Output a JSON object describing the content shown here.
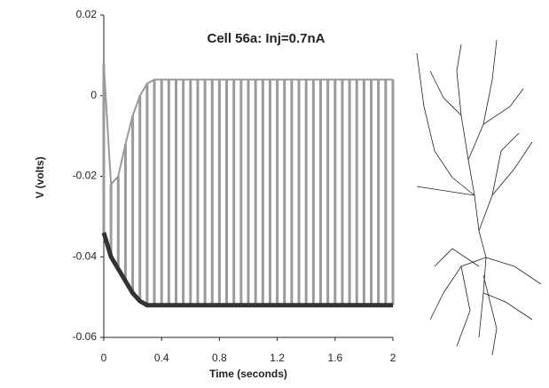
{
  "chart_data": {
    "type": "line",
    "title": "Cell 56a: Inj=0.7nA",
    "x_label": "Time (seconds)",
    "y_label": "V (volts)",
    "x": [
      0,
      0.05,
      0.1,
      0.15,
      0.2,
      0.25,
      0.3,
      0.35,
      0.4,
      0.45,
      0.5,
      0.55,
      0.6,
      0.65,
      0.7,
      0.75,
      0.8,
      0.85,
      0.9,
      0.95,
      1,
      1.05,
      1.1,
      1.15,
      1.2,
      1.25,
      1.3,
      1.35,
      1.4,
      1.45,
      1.5,
      1.55,
      1.6,
      1.65,
      1.7,
      1.75,
      1.8,
      1.85,
      1.9,
      1.95,
      2
    ],
    "series": [
      {
        "color": "#9a9a9a",
        "values": [
          0.008,
          -0.022,
          -0.02,
          -0.012,
          -0.005,
          0,
          0.003,
          0.004,
          0.004,
          0.004,
          0.004,
          0.004,
          0.004,
          0.004,
          0.004,
          0.004,
          0.004,
          0.004,
          0.004,
          0.004,
          0.004,
          0.004,
          0.004,
          0.004,
          0.004,
          0.004,
          0.004,
          0.004,
          0.004,
          0.004,
          0.004,
          0.004,
          0.004,
          0.004,
          0.004,
          0.004,
          0.004,
          0.004,
          0.004,
          0.004,
          0.004
        ]
      },
      {
        "color": "#333333",
        "values": [
          -0.034,
          -0.04,
          -0.043,
          -0.046,
          -0.049,
          -0.051,
          -0.052,
          -0.052,
          -0.052,
          -0.052,
          -0.052,
          -0.052,
          -0.052,
          -0.052,
          -0.052,
          -0.052,
          -0.052,
          -0.052,
          -0.052,
          -0.052,
          -0.052,
          -0.052,
          -0.052,
          -0.052,
          -0.052,
          -0.052,
          -0.052,
          -0.052,
          -0.052,
          -0.052,
          -0.052,
          -0.052,
          -0.052,
          -0.052,
          -0.052,
          -0.052,
          -0.052,
          -0.052,
          -0.052,
          -0.052,
          -0.052
        ]
      }
    ],
    "xlim": [
      0,
      2
    ],
    "xticks": [
      0,
      0.4,
      0.8,
      1.2,
      1.6,
      2
    ],
    "ylim": [
      -0.06,
      0.02
    ],
    "yticks": [
      0.02,
      0,
      -0.02,
      -0.04,
      -0.06
    ]
  }
}
